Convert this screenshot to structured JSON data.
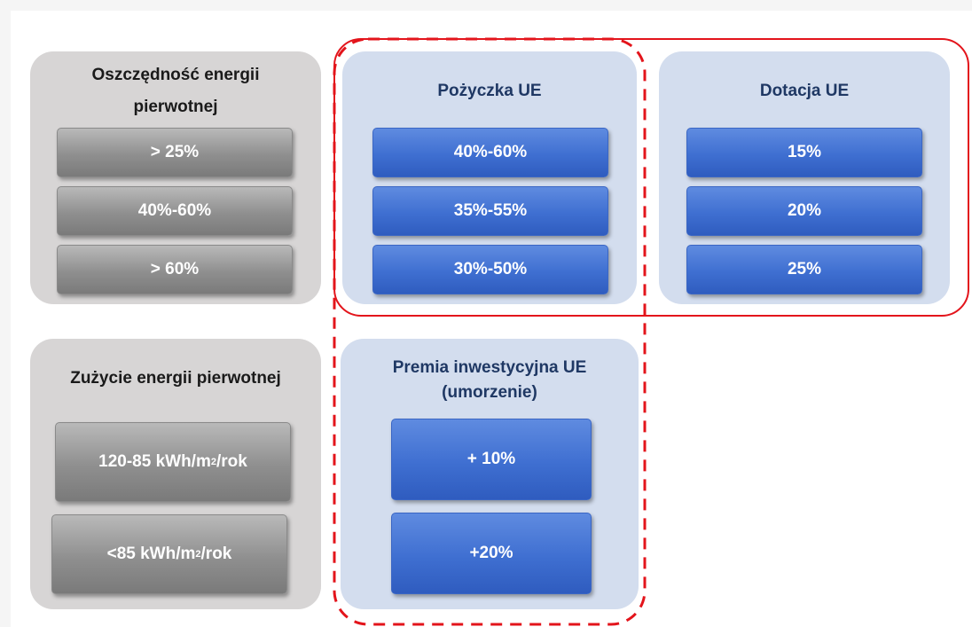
{
  "primary_energy_saving": {
    "title_line1": "Oszczędność energii",
    "title_line2": "pierwotnej",
    "items": [
      "> 25%",
      "40%-60%",
      "> 60%"
    ]
  },
  "eu_loan": {
    "title": "Pożyczka UE",
    "items": [
      "40%-60%",
      "35%-55%",
      "30%-50%"
    ]
  },
  "eu_grant": {
    "title": "Dotacja UE",
    "items": [
      "15%",
      "20%",
      "25%"
    ]
  },
  "primary_energy_use": {
    "title": "Zużycie energii pierwotnej",
    "items": [
      {
        "prefix": "120-85 kWh/m",
        "sup": "2",
        "suffix": "/rok"
      },
      {
        "prefix": "<85 kWh/m",
        "sup": "2",
        "suffix": "/rok"
      }
    ]
  },
  "eu_investment_bonus": {
    "title_line1": "Premia inwestycyjna UE",
    "title_line2": "(umorzenie)",
    "items": [
      "+ 10%",
      "+20%"
    ]
  },
  "colors": {
    "gray_panel": "#d7d5d5",
    "blue_panel": "#d3ddee",
    "gray_box": "#8f8f8f",
    "blue_box": "#3f6fd1",
    "highlight_red": "#e3141b",
    "title_blue": "#1f3864"
  }
}
